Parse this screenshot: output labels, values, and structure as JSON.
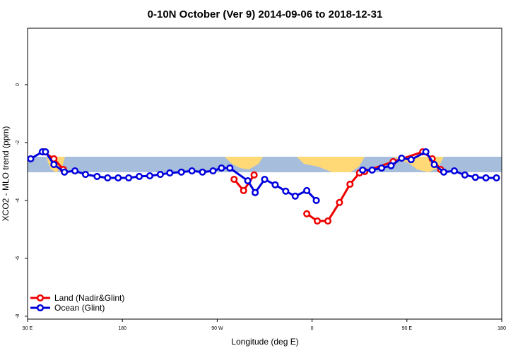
{
  "chart_data": {
    "type": "line",
    "title": "0-10N October (Ver 9)   2014-09-06 to 2018-12-31",
    "x_label": "Longitude (deg E)",
    "y_label": "XCO2 - MLO trend (ppm)",
    "xlim": [
      90,
      540
    ],
    "xticks": [
      {
        "value": 90,
        "label": "90 E"
      },
      {
        "value": 180,
        "label": "180"
      },
      {
        "value": 270,
        "label": "90 W"
      },
      {
        "value": 360,
        "label": "0"
      },
      {
        "value": 450,
        "label": "90 E"
      },
      {
        "value": 540,
        "label": "180"
      }
    ],
    "ylim": [
      -8.1,
      1.95
    ],
    "yticks": [
      0,
      -2,
      -4,
      -6,
      -8
    ],
    "legend": "bottom-left",
    "series": [
      {
        "name": "Land (Nadir&Glint)",
        "color": "#ee0000",
        "x": [
          105,
          115,
          124,
          null,
          286,
          295,
          305,
          null,
          355,
          365,
          375,
          386,
          396,
          405,
          410,
          437,
          465,
          474,
          482
        ],
        "values": [
          -2.32,
          -2.56,
          -2.93,
          null,
          -3.27,
          -3.66,
          -3.12,
          null,
          -4.46,
          -4.71,
          -4.71,
          -4.07,
          -3.44,
          -3.05,
          -3.0,
          -2.66,
          -2.32,
          -2.56,
          -2.93
        ]
      },
      {
        "name": "Ocean (Glint)",
        "color": "#0000dd",
        "x": [
          93,
          104,
          107,
          115,
          125,
          135,
          145,
          156,
          166,
          176,
          186,
          196,
          206,
          216,
          225,
          236,
          246,
          256,
          266,
          274,
          282,
          299,
          306,
          315,
          325,
          335,
          344,
          355,
          364,
          null,
          408,
          417,
          426,
          435,
          445,
          454,
          468,
          476,
          485,
          495,
          505,
          515,
          525,
          535
        ],
        "values": [
          -2.56,
          -2.32,
          -2.32,
          -2.76,
          -3.02,
          -2.98,
          -3.1,
          -3.17,
          -3.22,
          -3.22,
          -3.22,
          -3.17,
          -3.15,
          -3.1,
          -3.05,
          -3.02,
          -2.98,
          -3.02,
          -2.98,
          -2.88,
          -2.88,
          -3.32,
          -3.73,
          -3.27,
          -3.46,
          -3.68,
          -3.85,
          -3.66,
          -4.0,
          null,
          -2.95,
          -2.95,
          -2.88,
          -2.8,
          -2.54,
          -2.59,
          -2.32,
          -2.76,
          -3.02,
          -2.98,
          -3.12,
          -3.2,
          -3.22,
          -3.22
        ]
      }
    ]
  }
}
